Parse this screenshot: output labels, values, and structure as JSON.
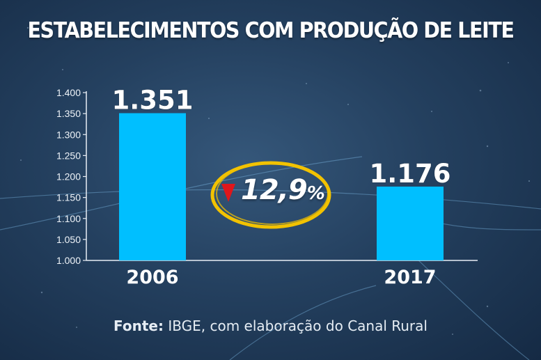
{
  "header": {
    "title": "ESTABELECIMENTOS COM PRODUÇÃO DE LEITE"
  },
  "chart_data": {
    "type": "bar",
    "categories": [
      "2006",
      "2017"
    ],
    "values": [
      1351,
      1176
    ],
    "value_labels": [
      "1.351",
      "1.176"
    ],
    "ylim": [
      1000,
      1400
    ],
    "yticks": [
      1000,
      1050,
      1100,
      1150,
      1200,
      1250,
      1300,
      1350,
      1400
    ],
    "ytick_labels": [
      "1.000",
      "1.050",
      "1.100",
      "1.150",
      "1.200",
      "1.250",
      "1.300",
      "1.350",
      "1.400"
    ],
    "bar_color": "#00bfff",
    "grid": false
  },
  "annotation": {
    "change": "12,9",
    "unit": "%",
    "direction": "down",
    "arrow_color": "#e0161b",
    "ring_color": "#f2c200"
  },
  "footer": {
    "source_label": "Fonte:",
    "source_text": " IBGE, com elaboração do Canal Rural"
  }
}
